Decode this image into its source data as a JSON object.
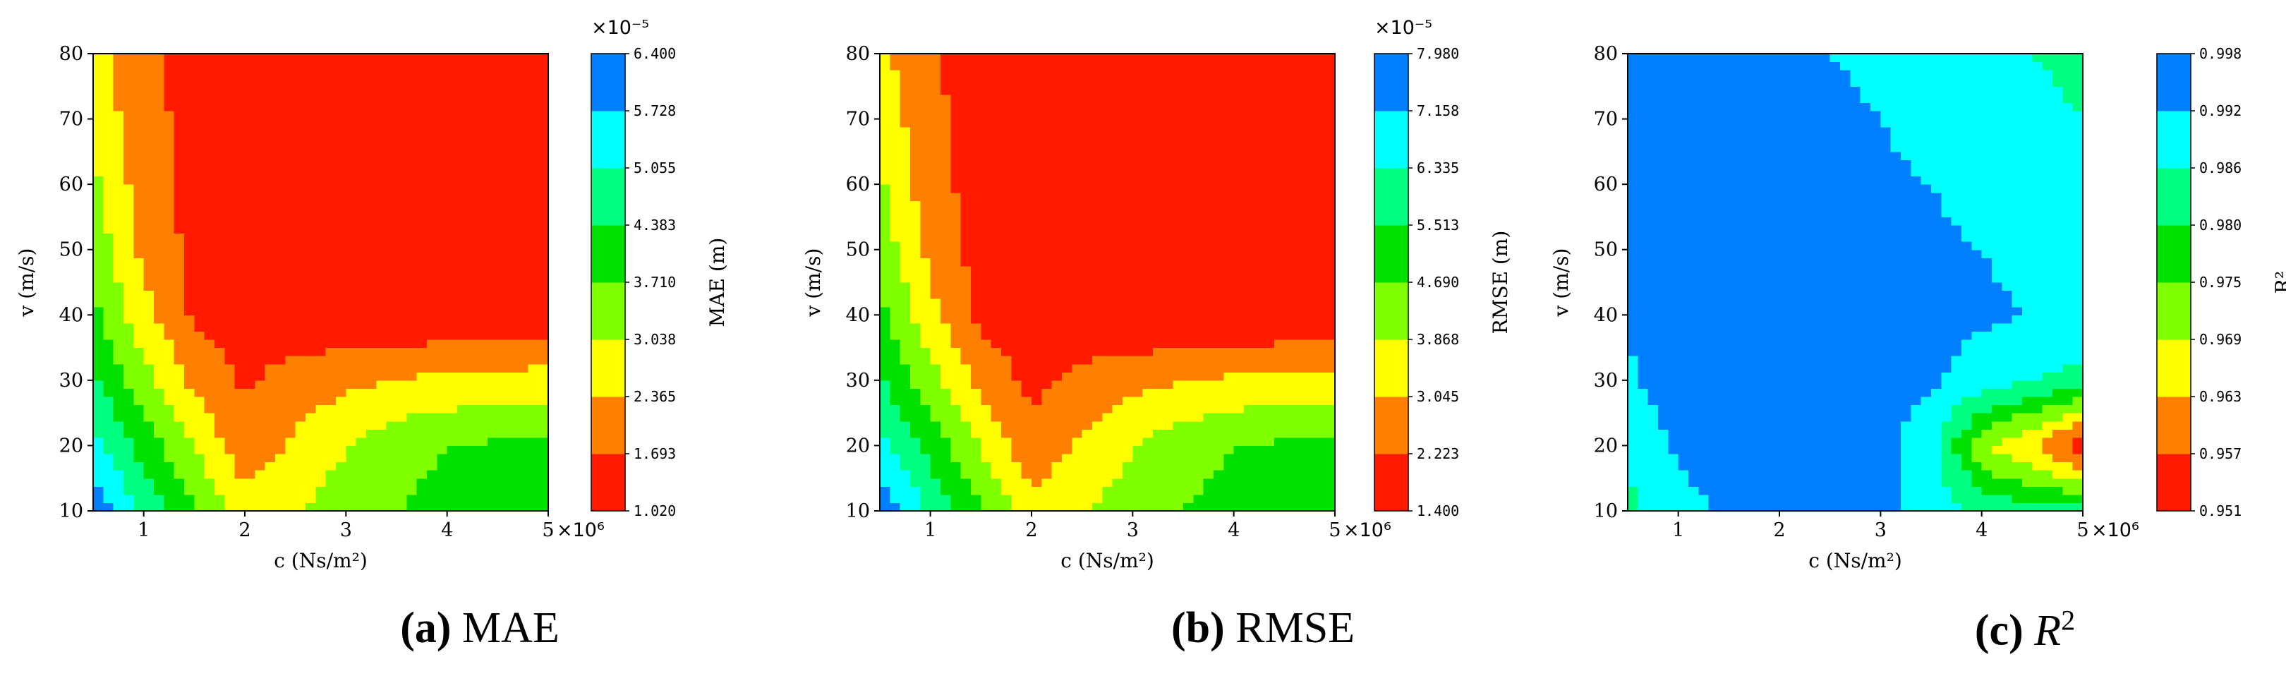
{
  "chart_data": [
    {
      "type": "heatmap",
      "panel": "(a)",
      "caption_label": "(a)",
      "caption_text": "MAE",
      "xlabel": "c (Ns/m²)",
      "ylabel": "v (m/s)",
      "x_multiplier": "×10⁶",
      "xticks": [
        1,
        2,
        3,
        4,
        5
      ],
      "yticks": [
        10,
        20,
        30,
        40,
        50,
        60,
        70,
        80
      ],
      "xlim": [
        0.5,
        5
      ],
      "ylim": [
        10,
        80
      ],
      "colorbar_label": "MAE (m)",
      "colorbar_multiplier": "×10⁻⁵",
      "colorbar_levels": [
        "1.020",
        "1.693",
        "2.365",
        "3.038",
        "3.710",
        "4.383",
        "5.055",
        "5.728",
        "6.400"
      ],
      "colorbar_colors": [
        "#ff1a00",
        "#ff8000",
        "#ffff00",
        "#80ff00",
        "#00e100",
        "#00ff80",
        "#00ffff",
        "#0080ff"
      ],
      "x": [
        0.5,
        1,
        1.5,
        2,
        2.5,
        3,
        3.5,
        4,
        4.5,
        5
      ],
      "y": [
        10,
        20,
        30,
        40,
        50,
        60,
        70,
        80
      ],
      "z": [
        [
          6.2,
          4.9,
          3.8,
          2.7,
          3.0,
          3.4,
          3.7,
          3.9,
          4.0,
          4.1
        ],
        [
          5.3,
          4.1,
          3.0,
          1.9,
          2.5,
          3.0,
          3.5,
          3.7,
          3.8,
          3.8
        ],
        [
          4.5,
          3.3,
          2.2,
          1.6,
          2.0,
          2.2,
          2.4,
          2.5,
          2.6,
          2.7
        ],
        [
          3.9,
          2.6,
          1.6,
          1.3,
          1.2,
          1.1,
          1.1,
          1.1,
          1.1,
          1.1
        ],
        [
          3.5,
          2.2,
          1.5,
          1.3,
          1.2,
          1.2,
          1.1,
          1.1,
          1.1,
          1.1
        ],
        [
          3.2,
          2.0,
          1.5,
          1.3,
          1.3,
          1.2,
          1.2,
          1.1,
          1.1,
          1.1
        ],
        [
          2.9,
          1.9,
          1.5,
          1.4,
          1.3,
          1.2,
          1.2,
          1.1,
          1.1,
          1.1
        ],
        [
          2.6,
          1.8,
          1.5,
          1.4,
          1.3,
          1.3,
          1.2,
          1.2,
          1.1,
          1.1
        ]
      ]
    },
    {
      "type": "heatmap",
      "panel": "(b)",
      "caption_label": "(b)",
      "caption_text": "RMSE",
      "xlabel": "c (Ns/m²)",
      "ylabel": "v (m/s)",
      "x_multiplier": "×10⁶",
      "xticks": [
        1,
        2,
        3,
        4,
        5
      ],
      "yticks": [
        10,
        20,
        30,
        40,
        50,
        60,
        70,
        80
      ],
      "xlim": [
        0.5,
        5
      ],
      "ylim": [
        10,
        80
      ],
      "colorbar_label": "RMSE (m)",
      "colorbar_multiplier": "×10⁻⁵",
      "colorbar_levels": [
        "1.400",
        "2.223",
        "3.045",
        "3.868",
        "4.690",
        "5.513",
        "6.335",
        "7.158",
        "7.980"
      ],
      "colorbar_colors": [
        "#ff1a00",
        "#ff8000",
        "#ffff00",
        "#80ff00",
        "#00e100",
        "#00ff80",
        "#00ffff",
        "#0080ff"
      ],
      "x": [
        0.5,
        1,
        1.5,
        2,
        2.5,
        3,
        3.5,
        4,
        4.5,
        5
      ],
      "y": [
        10,
        20,
        30,
        40,
        50,
        60,
        70,
        80
      ],
      "z": [
        [
          7.8,
          6.2,
          4.8,
          3.4,
          3.8,
          4.3,
          4.7,
          4.9,
          5.0,
          5.2
        ],
        [
          6.6,
          5.2,
          3.8,
          2.4,
          3.2,
          3.8,
          4.4,
          4.7,
          4.8,
          4.8
        ],
        [
          5.6,
          4.2,
          2.8,
          2.0,
          2.5,
          2.8,
          3.0,
          3.2,
          3.3,
          3.4
        ],
        [
          4.9,
          3.3,
          2.0,
          1.7,
          1.5,
          1.4,
          1.4,
          1.4,
          1.4,
          1.4
        ],
        [
          4.4,
          2.8,
          1.9,
          1.7,
          1.5,
          1.5,
          1.4,
          1.4,
          1.4,
          1.4
        ],
        [
          4.0,
          2.5,
          1.9,
          1.7,
          1.6,
          1.5,
          1.5,
          1.4,
          1.4,
          1.4
        ],
        [
          3.6,
          2.4,
          1.9,
          1.7,
          1.6,
          1.5,
          1.5,
          1.4,
          1.4,
          1.4
        ],
        [
          3.3,
          2.3,
          1.9,
          1.7,
          1.6,
          1.6,
          1.5,
          1.5,
          1.4,
          1.4
        ]
      ]
    },
    {
      "type": "heatmap",
      "panel": "(c)",
      "caption_label": "(c)",
      "caption_text": "R",
      "caption_sup": "2",
      "xlabel": "c (Ns/m²)",
      "ylabel": "v (m/s)",
      "x_multiplier": "×10⁶",
      "xticks": [
        1,
        2,
        3,
        4,
        5
      ],
      "yticks": [
        10,
        20,
        30,
        40,
        50,
        60,
        70,
        80
      ],
      "xlim": [
        0.5,
        5
      ],
      "ylim": [
        10,
        80
      ],
      "colorbar_label": "R²",
      "colorbar_multiplier": "",
      "colorbar_levels": [
        "0.951",
        "0.957",
        "0.963",
        "0.969",
        "0.975",
        "0.980",
        "0.986",
        "0.992",
        "0.998"
      ],
      "colorbar_colors": [
        "#ff1a00",
        "#ff8000",
        "#ffff00",
        "#80ff00",
        "#00e100",
        "#00ff80",
        "#00ffff",
        "#0080ff"
      ],
      "x": [
        0.5,
        1,
        1.5,
        2,
        2.5,
        3,
        3.5,
        4,
        4.5,
        5
      ],
      "y": [
        10,
        20,
        30,
        40,
        50,
        60,
        70,
        80
      ],
      "z": [
        [
          0.984,
          0.99,
          0.993,
          0.995,
          0.994,
          0.993,
          0.99,
          0.985,
          0.982,
          0.984
        ],
        [
          0.988,
          0.993,
          0.995,
          0.997,
          0.996,
          0.994,
          0.988,
          0.97,
          0.963,
          0.952
        ],
        [
          0.991,
          0.995,
          0.996,
          0.997,
          0.996,
          0.995,
          0.993,
          0.989,
          0.986,
          0.984
        ],
        [
          0.993,
          0.996,
          0.996,
          0.996,
          0.996,
          0.996,
          0.994,
          0.993,
          0.992,
          0.991
        ],
        [
          0.995,
          0.996,
          0.996,
          0.996,
          0.995,
          0.995,
          0.993,
          0.992,
          0.99,
          0.989
        ],
        [
          0.996,
          0.996,
          0.996,
          0.995,
          0.994,
          0.993,
          0.992,
          0.99,
          0.988,
          0.987
        ],
        [
          0.996,
          0.996,
          0.995,
          0.994,
          0.993,
          0.992,
          0.99,
          0.988,
          0.987,
          0.986
        ],
        [
          0.996,
          0.995,
          0.995,
          0.994,
          0.992,
          0.991,
          0.989,
          0.987,
          0.986,
          0.985
        ]
      ]
    }
  ]
}
